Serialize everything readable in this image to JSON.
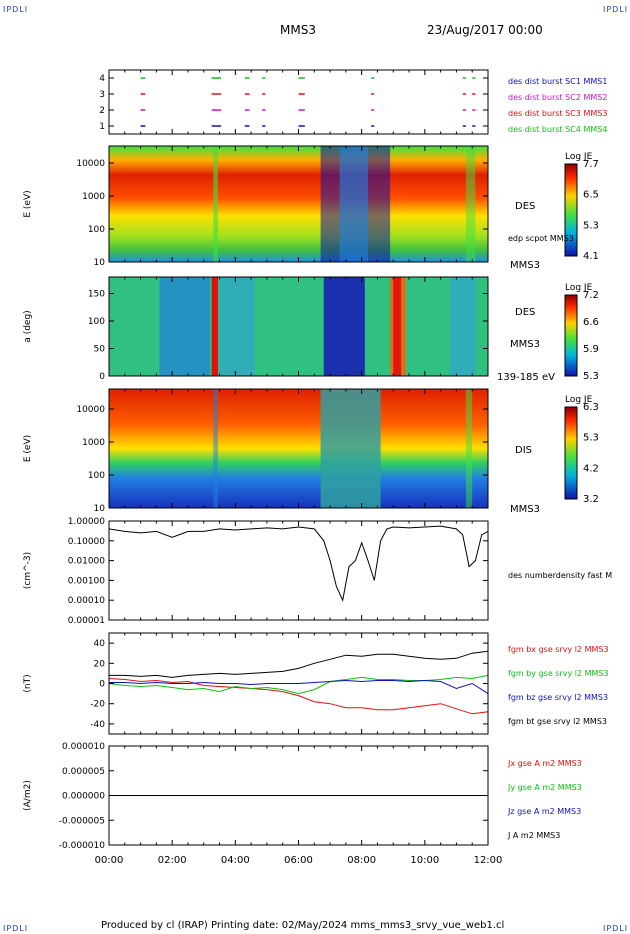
{
  "corner_label": "IPDLI",
  "header": {
    "spacecraft": "MMS3",
    "date": "23/Aug/2017 00:00"
  },
  "footer": "Produced by cl (IRAP)   Printing date: 02/May/2024   mms_mms3_srvy_vue_web1.cl",
  "chart_data": [
    {
      "type": "scatter",
      "panel": "burst-availability",
      "yticks": [
        "1",
        "2",
        "3",
        "4"
      ],
      "series": [
        {
          "name": "des dist burst SC1 MMS1",
          "color": "#1010c0",
          "level": 1
        },
        {
          "name": "des dist burst SC2 MMS2",
          "color": "#d010d0",
          "level": 2
        },
        {
          "name": "des dist burst SC3 MMS3",
          "color": "#e01010",
          "level": 3
        },
        {
          "name": "des dist burst SC4 MMS4",
          "color": "#10c010",
          "level": 4
        }
      ],
      "segments_hours": [
        [
          1.0,
          1.15
        ],
        [
          3.25,
          3.55
        ],
        [
          4.3,
          4.45
        ],
        [
          4.85,
          4.95
        ],
        [
          6.0,
          6.2
        ],
        [
          8.3,
          8.4
        ],
        [
          11.2,
          11.3
        ],
        [
          11.5,
          11.6
        ]
      ]
    },
    {
      "type": "heatmap",
      "panel": "des-energy",
      "ylabel": "E (eV)",
      "yticks": [
        "10",
        "100",
        "1000",
        "10000"
      ],
      "label": "DES",
      "sublabel": "MMS3",
      "overlay": "edp scpot MMS3",
      "colorbar": {
        "title": "Log JE",
        "ticks": [
          "7.7",
          "6.5",
          "5.3",
          "4.1"
        ]
      }
    },
    {
      "type": "heatmap",
      "panel": "des-pitch-angle",
      "ylabel": "a (deg)",
      "yticks": [
        "0",
        "50",
        "100",
        "150"
      ],
      "label": "DES",
      "sublabel": "MMS3",
      "energy_range": "139-185 eV",
      "colorbar": {
        "title": "Log JE",
        "ticks": [
          "7.2",
          "6.6",
          "5.9",
          "5.3"
        ]
      }
    },
    {
      "type": "heatmap",
      "panel": "dis-energy",
      "ylabel": "E (eV)",
      "yticks": [
        "10",
        "100",
        "1000",
        "10000"
      ],
      "label": "DIS",
      "sublabel": "MMS3",
      "colorbar": {
        "title": "Log JE",
        "ticks": [
          "6.3",
          "5.3",
          "4.2",
          "3.2"
        ]
      }
    },
    {
      "type": "line",
      "panel": "density",
      "ylabel": "(cm^-3)",
      "yticks": [
        "1.00000",
        "0.10000",
        "0.01000",
        "0.00100",
        "0.00010",
        "0.00001"
      ],
      "ylim": [
        1e-05,
        1.0
      ],
      "series": [
        {
          "name": "des numberdensity fast M",
          "color": "#000000"
        }
      ],
      "x": [
        0,
        0.5,
        1,
        1.5,
        2,
        2.5,
        3,
        3.5,
        4,
        4.5,
        5,
        5.5,
        6,
        6.5,
        6.8,
        7,
        7.2,
        7.4,
        7.6,
        7.8,
        8,
        8.2,
        8.4,
        8.6,
        8.8,
        9,
        9.5,
        10,
        10.5,
        11,
        11.2,
        11.4,
        11.6,
        11.8,
        12
      ],
      "values": [
        0.4,
        0.3,
        0.25,
        0.3,
        0.15,
        0.3,
        0.3,
        0.4,
        0.35,
        0.4,
        0.45,
        0.4,
        0.5,
        0.4,
        0.1,
        0.01,
        0.0005,
        0.0001,
        0.005,
        0.01,
        0.08,
        0.01,
        0.001,
        0.1,
        0.4,
        0.5,
        0.45,
        0.5,
        0.55,
        0.4,
        0.2,
        0.005,
        0.01,
        0.2,
        0.3
      ]
    },
    {
      "type": "line",
      "panel": "magnetic-field",
      "ylabel": "(nT)",
      "yticks": [
        "40",
        "20",
        "0",
        "-20",
        "-40"
      ],
      "ylim": [
        -50,
        50
      ],
      "x": [
        0,
        0.5,
        1,
        1.5,
        2,
        2.5,
        3,
        3.5,
        4,
        4.5,
        5,
        5.5,
        6,
        6.5,
        7,
        7.5,
        8,
        8.5,
        9,
        9.5,
        10,
        10.5,
        11,
        11.5,
        12
      ],
      "series": [
        {
          "name": "fgm bx gse srvy l2 MMS3",
          "color": "#e01010",
          "values": [
            5,
            4,
            2,
            3,
            1,
            2,
            -2,
            -3,
            -4,
            -5,
            -6,
            -8,
            -12,
            -18,
            -20,
            -24,
            -24,
            -26,
            -26,
            -24,
            -22,
            -20,
            -25,
            -30,
            -28
          ]
        },
        {
          "name": "fgm by gse srvy l2 MMS3",
          "color": "#10c010",
          "values": [
            0,
            -2,
            -3,
            -2,
            -4,
            -6,
            -5,
            -8,
            -3,
            -5,
            -4,
            -6,
            -10,
            -6,
            2,
            4,
            6,
            4,
            4,
            3,
            3,
            4,
            6,
            5,
            8
          ]
        },
        {
          "name": "fgm bz gse srvy l2 MMS3",
          "color": "#1010c0",
          "values": [
            1,
            1,
            0,
            1,
            0,
            0,
            1,
            0,
            0,
            -1,
            0,
            0,
            0,
            1,
            2,
            3,
            2,
            3,
            3,
            2,
            3,
            2,
            -5,
            0,
            -10
          ]
        },
        {
          "name": "fgm bt gse srvy l2 MMS3",
          "color": "#000000",
          "values": [
            8,
            8,
            7,
            8,
            6,
            8,
            9,
            10,
            9,
            10,
            11,
            12,
            15,
            20,
            24,
            28,
            27,
            29,
            29,
            27,
            25,
            24,
            25,
            30,
            32
          ]
        }
      ]
    },
    {
      "type": "line",
      "panel": "current-density",
      "ylabel": "(A/m2)",
      "yticks": [
        "0.000010",
        "0.000005",
        "0.000000",
        "-0.000005",
        "-0.000010"
      ],
      "ylim": [
        -1e-05,
        1e-05
      ],
      "series": [
        {
          "name": "Jx gse A m2 MMS3",
          "color": "#e01010",
          "values": [
            0,
            0
          ]
        },
        {
          "name": "Jy gse A m2 MMS3",
          "color": "#10c010",
          "values": [
            0,
            0
          ]
        },
        {
          "name": "Jz gse A m2 MMS3",
          "color": "#1010c0",
          "values": [
            0,
            0
          ]
        },
        {
          "name": "J A m2 MMS3",
          "color": "#000000",
          "values": [
            0,
            0
          ]
        }
      ],
      "x": [
        0,
        12
      ]
    }
  ],
  "xaxis": {
    "ticks": [
      "00:00",
      "02:00",
      "04:00",
      "06:00",
      "08:00",
      "10:00",
      "12:00"
    ],
    "hours": [
      0,
      2,
      4,
      6,
      8,
      10,
      12
    ]
  },
  "colors": {
    "accent": "#1f3fbf"
  }
}
